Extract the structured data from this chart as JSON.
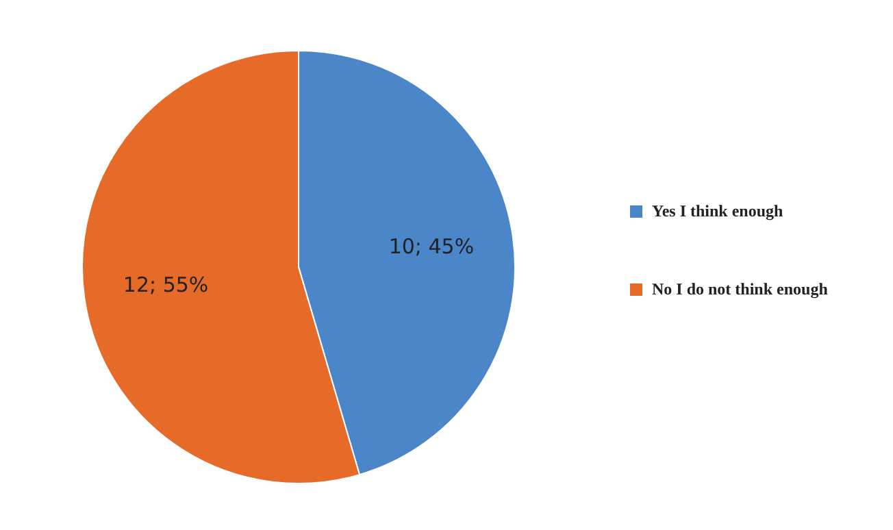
{
  "chart_data": {
    "type": "pie",
    "categories": [
      "Yes I think enough",
      "No I do not think enough"
    ],
    "values": [
      10,
      12
    ],
    "colors": [
      "#4a86c8",
      "#e66a28"
    ],
    "value_labels": [
      "10; 45%",
      "12; 55%"
    ],
    "legend": "right"
  }
}
